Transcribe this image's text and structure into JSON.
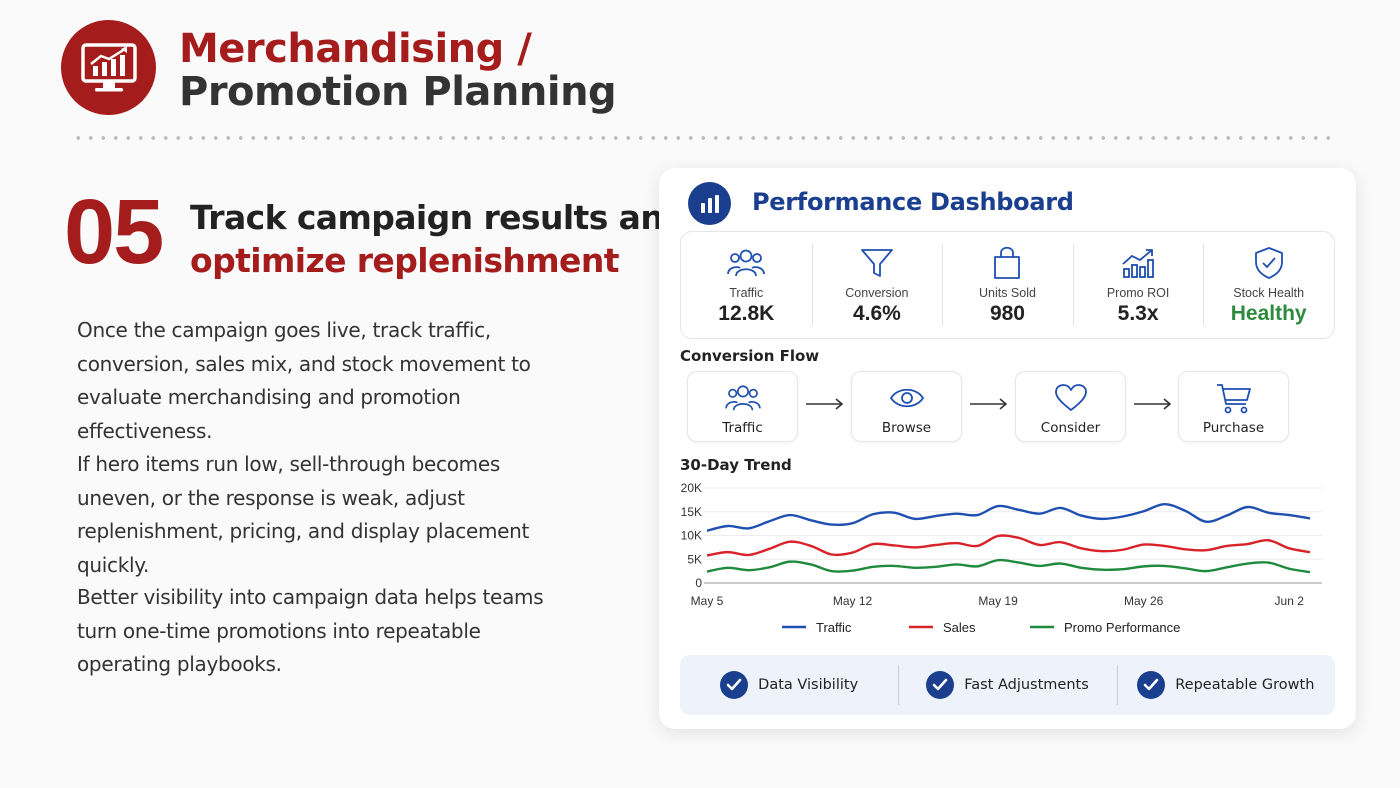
{
  "header": {
    "title_line1": "Merchandising /",
    "title_line2": "Promotion Planning",
    "logo_icon": "chart-monitor-icon"
  },
  "step": {
    "number": "05",
    "heading_line1": "Track campaign results and",
    "heading_line2": "optimize replenishment"
  },
  "paragraphs": [
    "Once the campaign goes live, track traffic, conversion, sales mix, and stock movement to evaluate merchandising and promotion effectiveness.",
    "If hero items run low, sell-through becomes uneven, or the response is weak, adjust replenishment, pricing, and display placement quickly.",
    "Better visibility into campaign data helps teams turn one-time promotions into repeatable operating playbooks."
  ],
  "dashboard": {
    "title": "Performance Dashboard",
    "kpis": [
      {
        "label": "Traffic",
        "value": "12.8K",
        "icon": "users-icon"
      },
      {
        "label": "Conversion",
        "value": "4.6%",
        "icon": "funnel-icon"
      },
      {
        "label": "Units Sold",
        "value": "980",
        "icon": "shopping-bag-icon"
      },
      {
        "label": "Promo ROI",
        "value": "5.3x",
        "icon": "growth-chart-icon"
      },
      {
        "label": "Stock Health",
        "value": "Healthy",
        "icon": "shield-check-icon"
      }
    ],
    "flow_title": "Conversion Flow",
    "flow": [
      {
        "label": "Traffic",
        "icon": "users-icon"
      },
      {
        "label": "Browse",
        "icon": "eye-icon"
      },
      {
        "label": "Consider",
        "icon": "heart-icon"
      },
      {
        "label": "Purchase",
        "icon": "cart-icon"
      }
    ],
    "trend_title": "30-Day Trend",
    "highlights": [
      "Data Visibility",
      "Fast Adjustments",
      "Repeatable Growth"
    ]
  },
  "colors": {
    "brand_red": "#a51c1c",
    "navy": "#1a3f8f",
    "healthy_green": "#2e8b3e"
  },
  "chart_data": {
    "type": "line",
    "title": "30-Day Trend",
    "x": [
      0,
      1,
      2,
      3,
      4,
      5,
      6,
      7,
      8,
      9,
      10,
      11,
      12,
      13,
      14,
      15,
      16,
      17,
      18,
      19,
      20,
      21,
      22,
      23,
      24,
      25,
      26,
      27,
      28,
      29
    ],
    "x_tick_labels": [
      "May 5",
      "May 12",
      "May 19",
      "May 26",
      "Jun 2"
    ],
    "x_tick_positions": [
      0,
      7,
      14,
      21,
      28
    ],
    "y_ticks": [
      "0",
      "5K",
      "10K",
      "15K",
      "20K"
    ],
    "ylim": [
      0,
      20000
    ],
    "legend_position": "bottom",
    "series": [
      {
        "name": "Traffic",
        "color": "#1f4fb0",
        "values": [
          11000,
          12000,
          11500,
          13000,
          14300,
          13200,
          12300,
          12600,
          14500,
          14800,
          13500,
          14100,
          14600,
          14300,
          16200,
          15400,
          14600,
          15800,
          14200,
          13500,
          14000,
          15100,
          16600,
          15200,
          12900,
          14200,
          16000,
          14800,
          14300,
          13600
        ]
      },
      {
        "name": "Sales",
        "color": "#d8232a",
        "values": [
          5800,
          6500,
          5900,
          7200,
          8700,
          7800,
          6000,
          6400,
          8200,
          7900,
          7500,
          8000,
          8400,
          7800,
          9900,
          9500,
          8000,
          8600,
          7300,
          6700,
          7000,
          8100,
          7800,
          7100,
          6900,
          7800,
          8200,
          9000,
          7300,
          6500
        ]
      },
      {
        "name": "Promo Performance",
        "color": "#1f8a3c",
        "values": [
          2400,
          3200,
          2700,
          3300,
          4500,
          3900,
          2500,
          2600,
          3400,
          3600,
          3200,
          3400,
          3900,
          3500,
          4800,
          4300,
          3600,
          4100,
          3200,
          2800,
          2900,
          3500,
          3600,
          3100,
          2500,
          3300,
          4100,
          4300,
          3000,
          2300
        ]
      }
    ]
  }
}
